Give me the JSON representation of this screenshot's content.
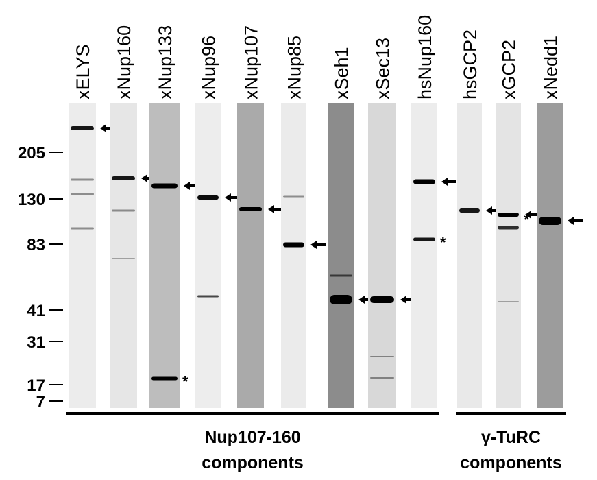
{
  "lanes": [
    "xELYS",
    "xNup160",
    "xNup133",
    "xNup96",
    "xNup107",
    "xNup85",
    "xSeh1",
    "xSec13",
    "hsNup160",
    "hsGCP2",
    "xGCP2",
    "xNedd1"
  ],
  "markers": [
    205,
    130,
    83,
    41,
    31,
    17,
    7
  ],
  "groups": [
    {
      "line1": "Nup107-160",
      "line2": "components"
    },
    {
      "line1": "γ-TuRC",
      "line2": "components"
    }
  ],
  "asterisks": [
    "*",
    "*",
    "*",
    "*"
  ]
}
